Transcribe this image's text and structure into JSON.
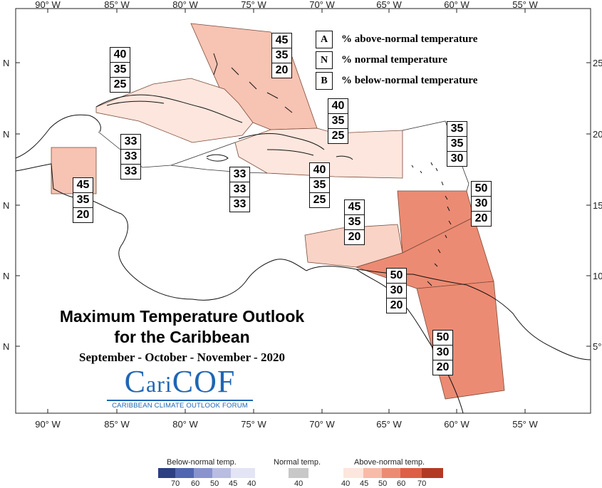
{
  "map": {
    "title": "Maximum Temperature Outlook",
    "title_line2": "for the Caribbean",
    "period": "September - October - November - 2020",
    "logo_text": "CariCOF",
    "logo_subtitle": "CARIBBEAN CLIMATE OUTLOOK FORUM"
  },
  "axes": {
    "lon_labels": [
      "90° W",
      "85° W",
      "80° W",
      "75° W",
      "70° W",
      "65° W",
      "60° W",
      "55° W"
    ],
    "lat_labels_left": [
      "N",
      "N",
      "N",
      "N",
      "N"
    ],
    "lat_labels_right": [
      "25",
      "20",
      "15",
      "10",
      "5°"
    ]
  },
  "key": [
    {
      "letter": "A",
      "text": "% above-normal temperature"
    },
    {
      "letter": "N",
      "text": "% normal temperature"
    },
    {
      "letter": "B",
      "text": "% below-normal temperature"
    }
  ],
  "regions": [
    {
      "name": "bahamas",
      "A": "45",
      "N": "35",
      "B": "20",
      "color": "#f7c3b3"
    },
    {
      "name": "cuba",
      "A": "40",
      "N": "35",
      "B": "25",
      "color": "#fde6dd"
    },
    {
      "name": "western-caribbean",
      "A": "33",
      "N": "33",
      "B": "33",
      "color": "#ffffff"
    },
    {
      "name": "jamaica",
      "A": "33",
      "N": "33",
      "B": "33",
      "color": "#ffffff"
    },
    {
      "name": "belize",
      "A": "45",
      "N": "35",
      "B": "20",
      "color": "#f7c3b3"
    },
    {
      "name": "hispaniola",
      "A": "40",
      "N": "35",
      "B": "25",
      "color": "#fde6dd"
    },
    {
      "name": "puerto-rico",
      "A": "40",
      "N": "35",
      "B": "25",
      "color": "#fde6dd"
    },
    {
      "name": "leeward-north",
      "A": "35",
      "N": "35",
      "B": "30",
      "color": "#ffffff"
    },
    {
      "name": "lesser-antilles",
      "A": "50",
      "N": "30",
      "B": "20",
      "color": "#ec8b73"
    },
    {
      "name": "abc-islands",
      "A": "45",
      "N": "35",
      "B": "20",
      "color": "#f9d3c6"
    },
    {
      "name": "trinidad",
      "A": "50",
      "N": "30",
      "B": "20",
      "color": "#ec8b73"
    },
    {
      "name": "guianas",
      "A": "50",
      "N": "30",
      "B": "20",
      "color": "#ec8b73"
    }
  ],
  "legend": {
    "below": {
      "title": "Below-normal temp.",
      "ticks": [
        "70",
        "60",
        "50",
        "45",
        "40"
      ],
      "colors": [
        "#2b3f82",
        "#5166b1",
        "#8a93cc",
        "#b9bde2",
        "#e3e4f4"
      ]
    },
    "normal": {
      "title": "Normal temp.",
      "ticks": [
        "40"
      ],
      "colors": [
        "#c8c8c8"
      ]
    },
    "above": {
      "title": "Above-normal temp.",
      "ticks": [
        "40",
        "45",
        "50",
        "60",
        "70"
      ],
      "colors": [
        "#fde6dd",
        "#f7bba8",
        "#ec8b73",
        "#dd5f44",
        "#b23a24"
      ]
    }
  }
}
